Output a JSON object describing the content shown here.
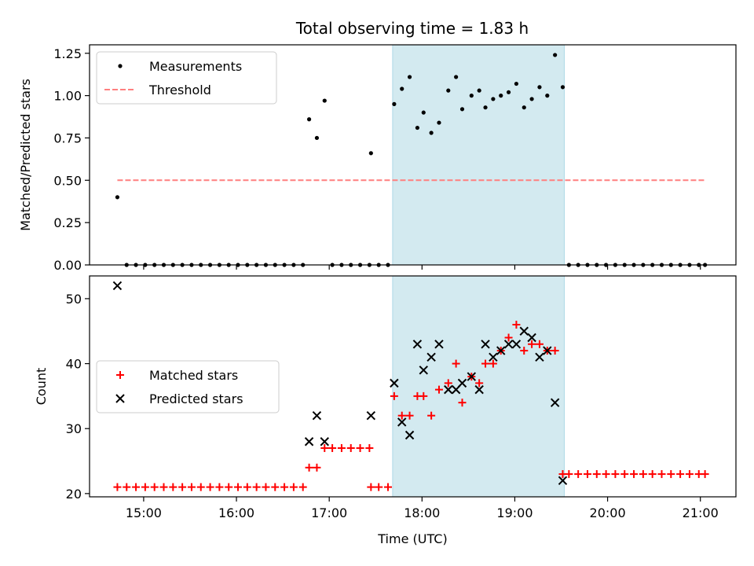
{
  "chart_data": [
    {
      "type": "scatter",
      "title": "Total observing time = 1.83 h",
      "xlabel": "",
      "ylabel": "Matched/Predicted stars",
      "x_axis_type": "time",
      "x_range": [
        "14:25",
        "21:23"
      ],
      "ylim": [
        0,
        1.3
      ],
      "yticks": [
        0.0,
        0.25,
        0.5,
        0.75,
        1.0,
        1.25
      ],
      "ytick_labels": [
        "0.00",
        "0.25",
        "0.50",
        "0.75",
        "1.00",
        "1.25"
      ],
      "grid": false,
      "legend_position": "upper-left",
      "highlight_span": {
        "start": "17:41",
        "end": "19:32",
        "color": "#d3eaf0"
      },
      "series": [
        {
          "name": "Measurements",
          "type": "scatter",
          "color": "#000000",
          "marker": "dot",
          "points": [
            [
              "14:43",
              0.4
            ],
            [
              "14:49",
              0.0
            ],
            [
              "14:55",
              0.0
            ],
            [
              "15:01",
              0.0
            ],
            [
              "15:07",
              0.0
            ],
            [
              "15:13",
              0.0
            ],
            [
              "15:19",
              0.0
            ],
            [
              "15:25",
              0.0
            ],
            [
              "15:31",
              0.0
            ],
            [
              "15:37",
              0.0
            ],
            [
              "15:43",
              0.0
            ],
            [
              "15:49",
              0.0
            ],
            [
              "15:55",
              0.0
            ],
            [
              "16:01",
              0.0
            ],
            [
              "16:07",
              0.0
            ],
            [
              "16:13",
              0.0
            ],
            [
              "16:19",
              0.0
            ],
            [
              "16:25",
              0.0
            ],
            [
              "16:31",
              0.0
            ],
            [
              "16:37",
              0.0
            ],
            [
              "16:43",
              0.0
            ],
            [
              "16:47",
              0.86
            ],
            [
              "16:52",
              0.75
            ],
            [
              "16:57",
              0.97
            ],
            [
              "17:02",
              0.0
            ],
            [
              "17:08",
              0.0
            ],
            [
              "17:14",
              0.0
            ],
            [
              "17:20",
              0.0
            ],
            [
              "17:26",
              0.0
            ],
            [
              "17:27",
              0.66
            ],
            [
              "17:32",
              0.0
            ],
            [
              "17:38",
              0.0
            ],
            [
              "17:42",
              0.95
            ],
            [
              "17:47",
              1.04
            ],
            [
              "17:52",
              1.11
            ],
            [
              "17:57",
              0.81
            ],
            [
              "18:01",
              0.9
            ],
            [
              "18:06",
              0.78
            ],
            [
              "18:11",
              0.84
            ],
            [
              "18:17",
              1.03
            ],
            [
              "18:22",
              1.11
            ],
            [
              "18:26",
              0.92
            ],
            [
              "18:32",
              1.0
            ],
            [
              "18:37",
              1.03
            ],
            [
              "18:41",
              0.93
            ],
            [
              "18:46",
              0.98
            ],
            [
              "18:51",
              1.0
            ],
            [
              "18:56",
              1.02
            ],
            [
              "19:01",
              1.07
            ],
            [
              "19:06",
              0.93
            ],
            [
              "19:11",
              0.98
            ],
            [
              "19:16",
              1.05
            ],
            [
              "19:21",
              1.0
            ],
            [
              "19:26",
              1.24
            ],
            [
              "19:31",
              1.05
            ],
            [
              "19:35",
              0.0
            ],
            [
              "19:41",
              0.0
            ],
            [
              "19:47",
              0.0
            ],
            [
              "19:53",
              0.0
            ],
            [
              "19:59",
              0.0
            ],
            [
              "20:05",
              0.0
            ],
            [
              "20:11",
              0.0
            ],
            [
              "20:17",
              0.0
            ],
            [
              "20:23",
              0.0
            ],
            [
              "20:29",
              0.0
            ],
            [
              "20:35",
              0.0
            ],
            [
              "20:41",
              0.0
            ],
            [
              "20:47",
              0.0
            ],
            [
              "20:53",
              0.0
            ],
            [
              "20:59",
              0.0
            ],
            [
              "21:03",
              0.0
            ]
          ]
        },
        {
          "name": "Threshold",
          "type": "line",
          "color": "#ff7f7f",
          "dash": "dashed",
          "points": [
            [
              "14:43",
              0.5
            ],
            [
              "21:03",
              0.5
            ]
          ]
        }
      ]
    },
    {
      "type": "scatter",
      "title": "",
      "xlabel": "Time (UTC)",
      "ylabel": "Count",
      "x_axis_type": "time",
      "x_range": [
        "14:25",
        "21:23"
      ],
      "xticks": [
        "15:00",
        "16:00",
        "17:00",
        "18:00",
        "19:00",
        "20:00",
        "21:00"
      ],
      "ylim": [
        19.5,
        53.5
      ],
      "yticks": [
        20,
        30,
        40,
        50
      ],
      "ytick_labels": [
        "20",
        "30",
        "40",
        "50"
      ],
      "grid": false,
      "legend_position": "center-left",
      "highlight_span": {
        "start": "17:41",
        "end": "19:32",
        "color": "#d3eaf0"
      },
      "series": [
        {
          "name": "Matched stars",
          "type": "scatter",
          "color": "#ff0000",
          "marker": "plus",
          "points": [
            [
              "14:43",
              21
            ],
            [
              "14:49",
              21
            ],
            [
              "14:55",
              21
            ],
            [
              "15:01",
              21
            ],
            [
              "15:07",
              21
            ],
            [
              "15:13",
              21
            ],
            [
              "15:19",
              21
            ],
            [
              "15:25",
              21
            ],
            [
              "15:31",
              21
            ],
            [
              "15:37",
              21
            ],
            [
              "15:43",
              21
            ],
            [
              "15:49",
              21
            ],
            [
              "15:55",
              21
            ],
            [
              "16:01",
              21
            ],
            [
              "16:07",
              21
            ],
            [
              "16:13",
              21
            ],
            [
              "16:19",
              21
            ],
            [
              "16:25",
              21
            ],
            [
              "16:31",
              21
            ],
            [
              "16:37",
              21
            ],
            [
              "16:43",
              21
            ],
            [
              "16:47",
              24
            ],
            [
              "16:52",
              24
            ],
            [
              "16:57",
              27
            ],
            [
              "17:02",
              27
            ],
            [
              "17:08",
              27
            ],
            [
              "17:14",
              27
            ],
            [
              "17:20",
              27
            ],
            [
              "17:26",
              27
            ],
            [
              "17:27",
              21
            ],
            [
              "17:32",
              21
            ],
            [
              "17:38",
              21
            ],
            [
              "17:42",
              35
            ],
            [
              "17:47",
              32
            ],
            [
              "17:52",
              32
            ],
            [
              "17:57",
              35
            ],
            [
              "18:01",
              35
            ],
            [
              "18:06",
              32
            ],
            [
              "18:11",
              36
            ],
            [
              "18:17",
              37
            ],
            [
              "18:22",
              40
            ],
            [
              "18:26",
              34
            ],
            [
              "18:32",
              38
            ],
            [
              "18:37",
              37
            ],
            [
              "18:41",
              40
            ],
            [
              "18:46",
              40
            ],
            [
              "18:51",
              42
            ],
            [
              "18:56",
              44
            ],
            [
              "19:01",
              46
            ],
            [
              "19:06",
              42
            ],
            [
              "19:11",
              43
            ],
            [
              "19:16",
              43
            ],
            [
              "19:21",
              42
            ],
            [
              "19:26",
              42
            ],
            [
              "19:31",
              23
            ],
            [
              "19:35",
              23
            ],
            [
              "19:41",
              23
            ],
            [
              "19:47",
              23
            ],
            [
              "19:53",
              23
            ],
            [
              "19:59",
              23
            ],
            [
              "20:05",
              23
            ],
            [
              "20:11",
              23
            ],
            [
              "20:17",
              23
            ],
            [
              "20:23",
              23
            ],
            [
              "20:29",
              23
            ],
            [
              "20:35",
              23
            ],
            [
              "20:41",
              23
            ],
            [
              "20:47",
              23
            ],
            [
              "20:53",
              23
            ],
            [
              "20:59",
              23
            ],
            [
              "21:03",
              23
            ]
          ]
        },
        {
          "name": "Predicted stars",
          "type": "scatter",
          "color": "#000000",
          "marker": "x",
          "points": [
            [
              "14:43",
              52
            ],
            [
              "16:47",
              28
            ],
            [
              "16:52",
              32
            ],
            [
              "16:57",
              28
            ],
            [
              "17:27",
              32
            ],
            [
              "17:42",
              37
            ],
            [
              "17:47",
              31
            ],
            [
              "17:52",
              29
            ],
            [
              "17:57",
              43
            ],
            [
              "18:01",
              39
            ],
            [
              "18:06",
              41
            ],
            [
              "18:11",
              43
            ],
            [
              "18:17",
              36
            ],
            [
              "18:22",
              36
            ],
            [
              "18:26",
              37
            ],
            [
              "18:32",
              38
            ],
            [
              "18:37",
              36
            ],
            [
              "18:41",
              43
            ],
            [
              "18:46",
              41
            ],
            [
              "18:51",
              42
            ],
            [
              "18:56",
              43
            ],
            [
              "19:01",
              43
            ],
            [
              "19:06",
              45
            ],
            [
              "19:11",
              44
            ],
            [
              "19:16",
              41
            ],
            [
              "19:21",
              42
            ],
            [
              "19:26",
              34
            ],
            [
              "19:31",
              22
            ]
          ]
        }
      ]
    }
  ]
}
